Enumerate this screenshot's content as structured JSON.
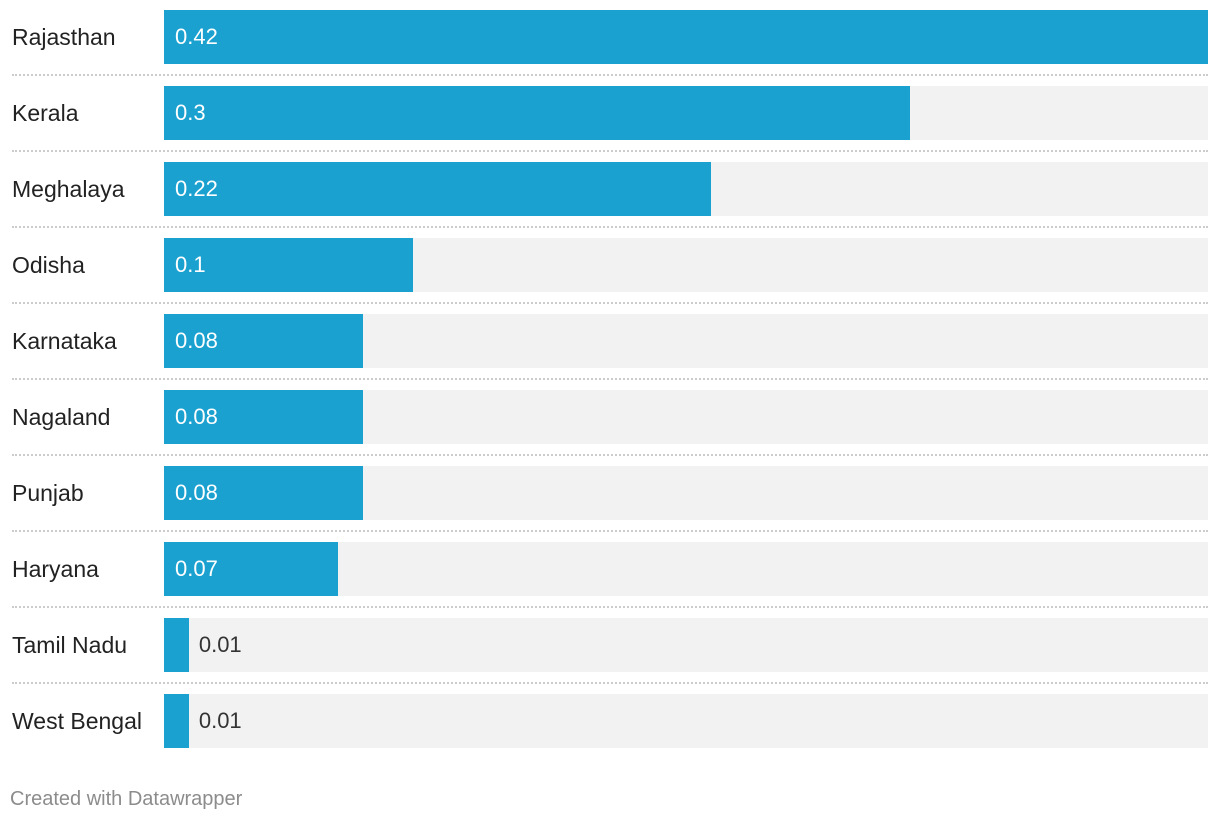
{
  "chart_data": {
    "type": "bar",
    "orientation": "horizontal",
    "categories": [
      "Rajasthan",
      "Kerala",
      "Meghalaya",
      "Odisha",
      "Karnataka",
      "Nagaland",
      "Punjab",
      "Haryana",
      "Tamil Nadu",
      "West Bengal"
    ],
    "values": [
      0.42,
      0.3,
      0.22,
      0.1,
      0.08,
      0.08,
      0.08,
      0.07,
      0.01,
      0.01
    ],
    "value_labels": [
      "0.42",
      "0.3",
      "0.22",
      "0.1",
      "0.08",
      "0.08",
      "0.08",
      "0.07",
      "0.01",
      "0.01"
    ],
    "xlim": [
      0,
      0.42
    ],
    "title": "",
    "xlabel": "",
    "ylabel": "",
    "grid": false,
    "legend": "none"
  },
  "colors": {
    "bar": "#1aa1cf",
    "track": "#f2f2f2",
    "label": "#222222",
    "credit": "#8c8c8c"
  },
  "footer": {
    "credit": "Created with Datawrapper"
  }
}
